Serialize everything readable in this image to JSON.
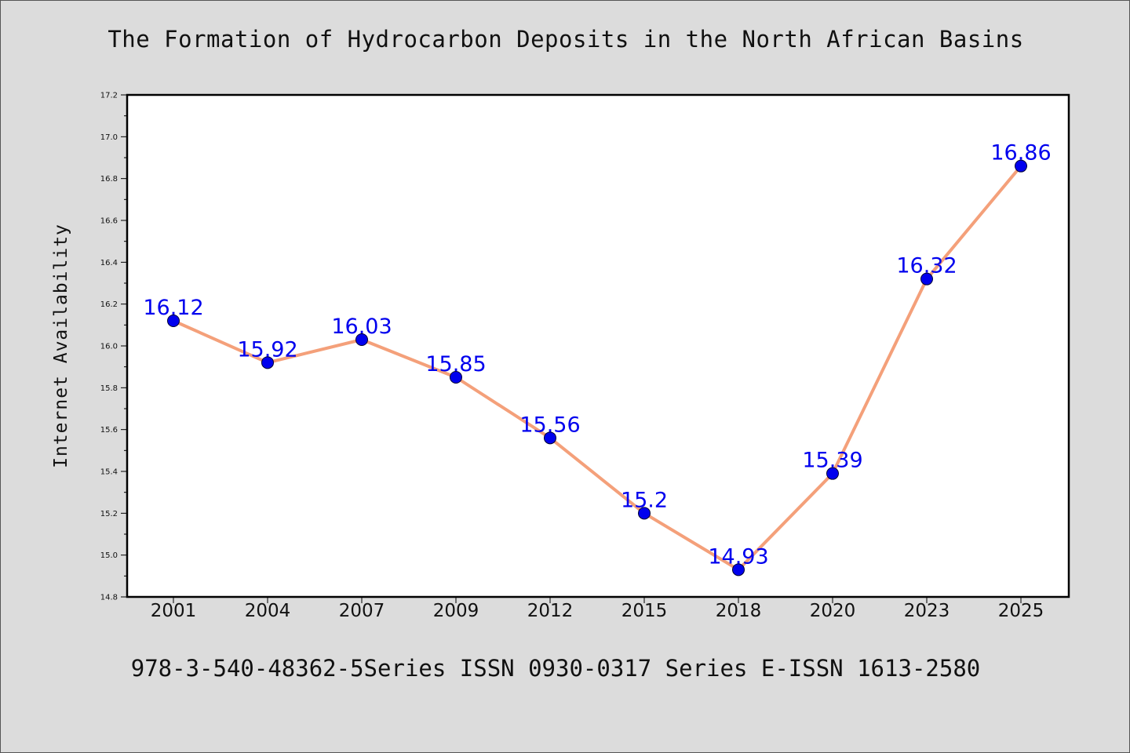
{
  "chart_data": {
    "type": "line",
    "title": "The Formation of Hydrocarbon Deposits in the North African Basins",
    "xlabel": "",
    "ylabel": "Internet Availability",
    "categories": [
      "2001",
      "2004",
      "2007",
      "2009",
      "2012",
      "2015",
      "2018",
      "2020",
      "2023",
      "2025"
    ],
    "series": [
      {
        "values": [
          16.12,
          15.92,
          16.03,
          15.85,
          15.56,
          15.2,
          14.93,
          15.39,
          16.32,
          16.86
        ],
        "labels": [
          "16.12",
          "15.92",
          "16.03",
          "15.85",
          "15.56",
          "15.2",
          "14.93",
          "15.39",
          "16.32",
          "16.86"
        ]
      }
    ],
    "ylim": [
      14.8,
      17.2
    ],
    "yticks": [
      "14.8",
      "15.0",
      "15.2",
      "15.4",
      "15.6",
      "15.8",
      "16.0",
      "16.2",
      "16.4",
      "16.6",
      "16.8",
      "17.0",
      "17.2"
    ],
    "grid": false,
    "legend": "none",
    "line_color": "#f4a07a",
    "marker_color": "#0000ee",
    "label_color": "#0000ee",
    "background_color": "#dcdcdc",
    "plot_background": "#ffffff"
  },
  "footer": {
    "text": "978-3-540-48362-5Series ISSN 0930-0317 Series E-ISSN 1613-2580"
  }
}
